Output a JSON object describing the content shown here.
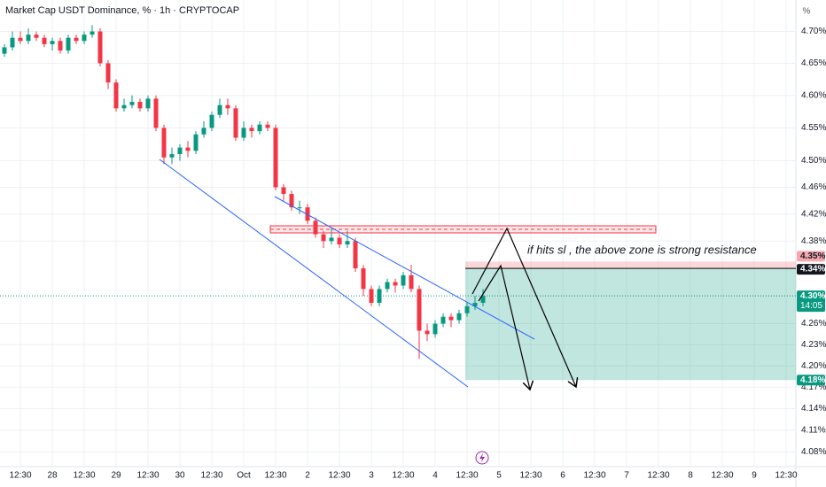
{
  "chart_data": {
    "type": "candlestick",
    "title": "Market Cap USDT Dominance, % · 1h · CRYPTOCAP",
    "unit_label": "%",
    "log_scale": true,
    "grid": true,
    "up_color": "#089981",
    "down_color": "#f23645",
    "ylim": [
      4.06,
      4.75
    ],
    "yticks": [
      {
        "value": 4.7,
        "label": "4.70%"
      },
      {
        "value": 4.65,
        "label": "4.65%"
      },
      {
        "value": 4.6,
        "label": "4.60%"
      },
      {
        "value": 4.55,
        "label": "4.55%"
      },
      {
        "value": 4.5,
        "label": "4.50%"
      },
      {
        "value": 4.46,
        "label": "4.46%"
      },
      {
        "value": 4.42,
        "label": "4.42%"
      },
      {
        "value": 4.38,
        "label": "4.38%"
      },
      {
        "value": 4.26,
        "label": "4.26%"
      },
      {
        "value": 4.23,
        "label": "4.23%"
      },
      {
        "value": 4.2,
        "label": "4.20%"
      },
      {
        "value": 4.17,
        "label": "4.17%"
      },
      {
        "value": 4.14,
        "label": "4.14%"
      },
      {
        "value": 4.11,
        "label": "4.11%"
      },
      {
        "value": 4.08,
        "label": "4.08%"
      }
    ],
    "categories": [
      null,
      null,
      "12:30",
      null,
      null,
      null,
      "28",
      null,
      null,
      null,
      "12:30",
      null,
      null,
      null,
      "29",
      null,
      null,
      null,
      "12:30",
      null,
      null,
      null,
      "30",
      null,
      null,
      null,
      "12:30",
      null,
      null,
      null,
      "Oct",
      null,
      null,
      null,
      "12:30",
      null,
      null,
      null,
      "2",
      null,
      null,
      null,
      "12:30",
      null,
      null,
      null,
      "3",
      null,
      null,
      null,
      "12:30",
      null,
      null,
      null,
      "4",
      null,
      null,
      null,
      "12:30",
      null,
      null,
      null,
      "5",
      null,
      null,
      null,
      "12:30",
      null,
      null,
      null,
      "6",
      null,
      null,
      null,
      "12:30",
      null,
      null,
      null,
      "7",
      null,
      null,
      null,
      "12:30",
      null,
      null,
      null,
      "8",
      null,
      null,
      null,
      "12:30",
      null,
      null,
      null,
      "9",
      null,
      null,
      null,
      "12:30"
    ],
    "series": {
      "open": [
        4.665,
        4.675,
        4.69,
        4.685,
        4.695,
        4.69,
        4.68,
        4.685,
        4.67,
        4.69,
        4.685,
        4.695,
        4.7,
        4.65,
        4.62,
        4.58,
        4.585,
        4.59,
        4.58,
        4.595,
        4.55,
        4.505,
        4.51,
        4.52,
        4.515,
        4.54,
        4.55,
        4.57,
        4.585,
        4.58,
        4.535,
        4.55,
        4.545,
        4.555,
        4.55,
        4.46,
        4.45,
        4.43,
        4.43,
        4.41,
        4.39,
        4.38,
        4.385,
        4.375,
        4.38,
        4.34,
        4.31,
        4.29,
        4.31,
        4.32,
        4.315,
        4.33,
        4.31,
        4.25,
        4.245,
        4.26,
        4.27,
        4.265,
        4.275,
        4.285,
        4.29,
        null,
        null,
        null,
        null,
        null,
        null,
        null,
        null,
        null,
        null,
        null,
        null,
        null,
        null,
        null,
        null,
        null,
        null,
        null,
        null,
        null,
        null,
        null,
        null,
        null,
        null,
        null,
        null,
        null,
        null,
        null,
        null,
        null,
        null,
        null,
        null,
        null,
        null
      ],
      "high": [
        4.68,
        4.7,
        4.7,
        4.705,
        4.7,
        4.695,
        4.69,
        4.69,
        4.695,
        4.695,
        4.7,
        4.71,
        4.705,
        4.655,
        4.625,
        4.595,
        4.6,
        4.595,
        4.6,
        4.6,
        4.555,
        4.52,
        4.525,
        4.53,
        4.545,
        4.56,
        4.575,
        4.595,
        4.595,
        4.585,
        4.56,
        4.555,
        4.56,
        4.56,
        4.555,
        4.465,
        4.455,
        4.44,
        4.435,
        4.415,
        4.395,
        4.4,
        4.39,
        4.395,
        4.385,
        4.345,
        4.315,
        4.315,
        4.325,
        4.325,
        4.335,
        4.345,
        4.315,
        4.26,
        4.265,
        4.275,
        4.275,
        4.28,
        4.29,
        4.3,
        4.31,
        null,
        null,
        null,
        null,
        null,
        null,
        null,
        null,
        null,
        null,
        null,
        null,
        null,
        null,
        null,
        null,
        null,
        null,
        null,
        null,
        null,
        null,
        null,
        null,
        null,
        null,
        null,
        null,
        null,
        null,
        null,
        null,
        null,
        null,
        null,
        null,
        null,
        null
      ],
      "low": [
        4.66,
        4.67,
        4.68,
        4.68,
        4.685,
        4.675,
        4.67,
        4.665,
        4.665,
        4.68,
        4.68,
        4.69,
        4.645,
        4.61,
        4.575,
        4.575,
        4.58,
        4.575,
        4.575,
        4.545,
        4.495,
        4.495,
        4.5,
        4.505,
        4.51,
        4.535,
        4.545,
        4.565,
        4.57,
        4.53,
        4.53,
        4.535,
        4.54,
        4.545,
        4.455,
        4.44,
        4.425,
        4.42,
        4.405,
        4.385,
        4.37,
        4.375,
        4.37,
        4.37,
        4.335,
        4.3,
        4.285,
        4.285,
        4.305,
        4.305,
        4.31,
        4.305,
        4.21,
        4.235,
        4.24,
        4.255,
        4.255,
        4.26,
        4.27,
        4.28,
        4.285,
        null,
        null,
        null,
        null,
        null,
        null,
        null,
        null,
        null,
        null,
        null,
        null,
        null,
        null,
        null,
        null,
        null,
        null,
        null,
        null,
        null,
        null,
        null,
        null,
        null,
        null,
        null,
        null,
        null,
        null,
        null,
        null,
        null,
        null,
        null,
        null,
        null,
        null
      ],
      "close": [
        4.675,
        4.69,
        4.685,
        4.695,
        4.69,
        4.68,
        4.685,
        4.67,
        4.69,
        4.685,
        4.695,
        4.7,
        4.65,
        4.62,
        4.58,
        4.585,
        4.59,
        4.58,
        4.595,
        4.55,
        4.505,
        4.51,
        4.52,
        4.515,
        4.54,
        4.55,
        4.57,
        4.585,
        4.58,
        4.535,
        4.55,
        4.545,
        4.555,
        4.55,
        4.46,
        4.45,
        4.43,
        4.43,
        4.41,
        4.39,
        4.38,
        4.385,
        4.375,
        4.38,
        4.34,
        4.31,
        4.29,
        4.31,
        4.32,
        4.315,
        4.33,
        4.31,
        4.25,
        4.245,
        4.26,
        4.27,
        4.265,
        4.275,
        4.285,
        4.29,
        4.3,
        null,
        null,
        null,
        null,
        null,
        null,
        null,
        null,
        null,
        null,
        null,
        null,
        null,
        null,
        null,
        null,
        null,
        null,
        null,
        null,
        null,
        null,
        null,
        null,
        null,
        null,
        null,
        null,
        null,
        null,
        null,
        null,
        null,
        null,
        null,
        null,
        null,
        null
      ]
    },
    "annotation": "if hits sl , the above zone is strong resistance",
    "price_labels": {
      "stop": {
        "value": 4.35,
        "label": "4.35%"
      },
      "entry": {
        "value": 4.34,
        "label": "4.34%"
      },
      "last": {
        "value": 4.3,
        "label": "4.30%"
      },
      "countdown": "14:05",
      "target": {
        "value": 4.18,
        "label": "4.18%"
      }
    }
  }
}
